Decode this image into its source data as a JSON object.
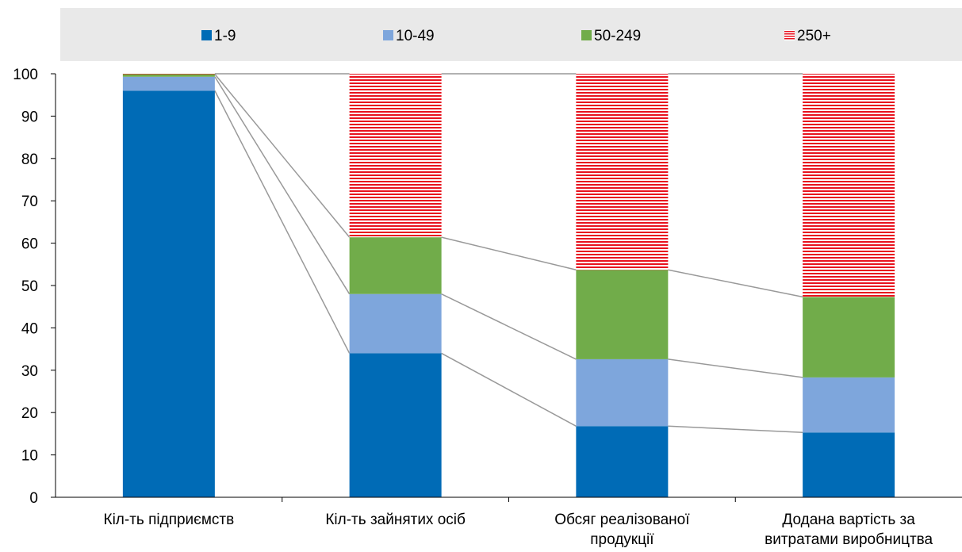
{
  "chart_data": {
    "type": "bar",
    "stacked": true,
    "categories": [
      [
        "Кіл-ть підприємств"
      ],
      [
        "Кіл-ть зайнятих осіб"
      ],
      [
        "Обсяг реалізованої",
        "продукції"
      ],
      [
        "Додана вартість за",
        "витратами виробництва"
      ]
    ],
    "series": [
      {
        "name": "1-9",
        "values": [
          96.0,
          34.0,
          16.8,
          15.3
        ],
        "color": "#006bb6",
        "pattern": "solid"
      },
      {
        "name": "10-49",
        "values": [
          3.3,
          14.0,
          15.8,
          13.0
        ],
        "color": "#7ea6dc",
        "pattern": "solid"
      },
      {
        "name": "50-249",
        "values": [
          0.6,
          13.4,
          21.1,
          19.0
        ],
        "color": "#71ac4a",
        "pattern": "solid"
      },
      {
        "name": "250+",
        "values": [
          0.1,
          38.6,
          46.3,
          52.7
        ],
        "color": "#e8121e",
        "pattern": "horizontal-stripes"
      }
    ],
    "ylim": [
      0,
      100
    ],
    "yticks": [
      0,
      10,
      20,
      30,
      40,
      50,
      60,
      70,
      80,
      90,
      100
    ],
    "grid": false,
    "legend_position": "top",
    "connector_lines": true,
    "connector_color": "#999999"
  }
}
